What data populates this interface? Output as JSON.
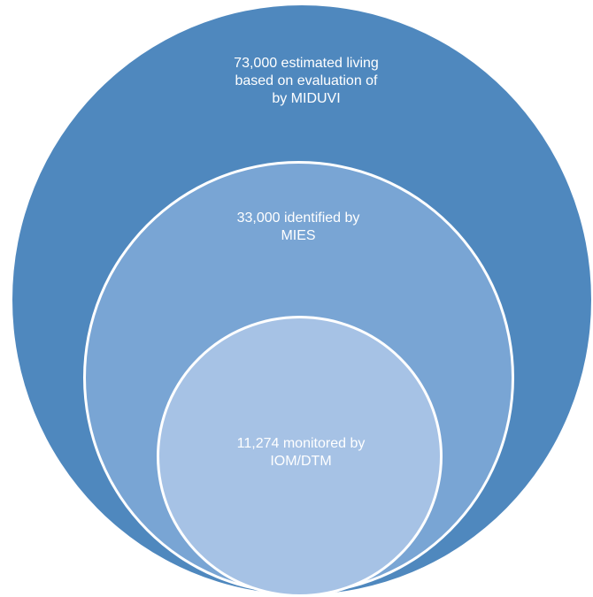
{
  "colors": {
    "outer_fill": "#4f88be",
    "middle_fill": "#79a5d4",
    "inner_fill": "#a6c2e5",
    "border": "#ffffff",
    "text": "#ffffff"
  },
  "levels": [
    {
      "name": "outer",
      "lines": [
        "73,000 estimated living",
        "based on evaluation of",
        "by MIDUVI"
      ]
    },
    {
      "name": "middle",
      "lines": [
        "33,000 identified by",
        "MIES"
      ]
    },
    {
      "name": "inner",
      "lines": [
        "11,274 monitored by",
        "IOM/DTM"
      ]
    }
  ]
}
